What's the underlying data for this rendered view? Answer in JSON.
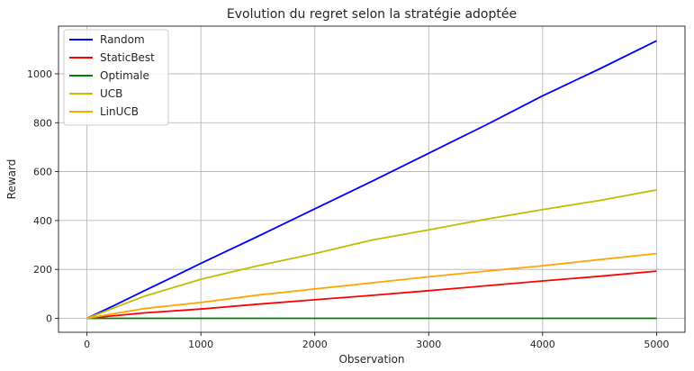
{
  "chart_data": {
    "type": "line",
    "title": "Evolution du regret selon la stratégie adoptée",
    "xlabel": "Observation",
    "ylabel": "Reward",
    "xlim": [
      -250,
      5250
    ],
    "ylim": [
      -57,
      1195
    ],
    "xticks": [
      0,
      1000,
      2000,
      3000,
      4000,
      5000
    ],
    "yticks": [
      0,
      200,
      400,
      600,
      800,
      1000
    ],
    "grid": true,
    "legend_position": "top-left",
    "series": [
      {
        "name": "Random",
        "color": "#0000ff",
        "points": [
          [
            0,
            0
          ],
          [
            250,
            55
          ],
          [
            500,
            112
          ],
          [
            750,
            168
          ],
          [
            1000,
            225
          ],
          [
            1500,
            335
          ],
          [
            2000,
            448
          ],
          [
            2500,
            560
          ],
          [
            3000,
            675
          ],
          [
            3500,
            790
          ],
          [
            4000,
            910
          ],
          [
            4500,
            1020
          ],
          [
            5000,
            1135
          ]
        ]
      },
      {
        "name": "StaticBest",
        "color": "#ff0000",
        "points": [
          [
            0,
            0
          ],
          [
            500,
            22
          ],
          [
            1000,
            38
          ],
          [
            1500,
            58
          ],
          [
            2000,
            76
          ],
          [
            2500,
            94
          ],
          [
            3000,
            113
          ],
          [
            3500,
            133
          ],
          [
            4000,
            153
          ],
          [
            4500,
            172
          ],
          [
            5000,
            193
          ]
        ]
      },
      {
        "name": "Optimale",
        "color": "#008000",
        "points": [
          [
            0,
            0
          ],
          [
            5000,
            0
          ]
        ]
      },
      {
        "name": "UCB",
        "color": "#bfbf00",
        "points": [
          [
            0,
            0
          ],
          [
            250,
            45
          ],
          [
            500,
            90
          ],
          [
            750,
            125
          ],
          [
            1000,
            160
          ],
          [
            1500,
            215
          ],
          [
            2000,
            265
          ],
          [
            2500,
            320
          ],
          [
            3000,
            362
          ],
          [
            3500,
            405
          ],
          [
            4000,
            445
          ],
          [
            4500,
            482
          ],
          [
            5000,
            525
          ]
        ]
      },
      {
        "name": "LinUCB",
        "color": "#ffa500",
        "points": [
          [
            0,
            0
          ],
          [
            500,
            40
          ],
          [
            1000,
            65
          ],
          [
            1500,
            95
          ],
          [
            2000,
            120
          ],
          [
            2500,
            145
          ],
          [
            3000,
            170
          ],
          [
            3500,
            193
          ],
          [
            4000,
            215
          ],
          [
            4500,
            240
          ],
          [
            5000,
            265
          ]
        ]
      }
    ]
  }
}
